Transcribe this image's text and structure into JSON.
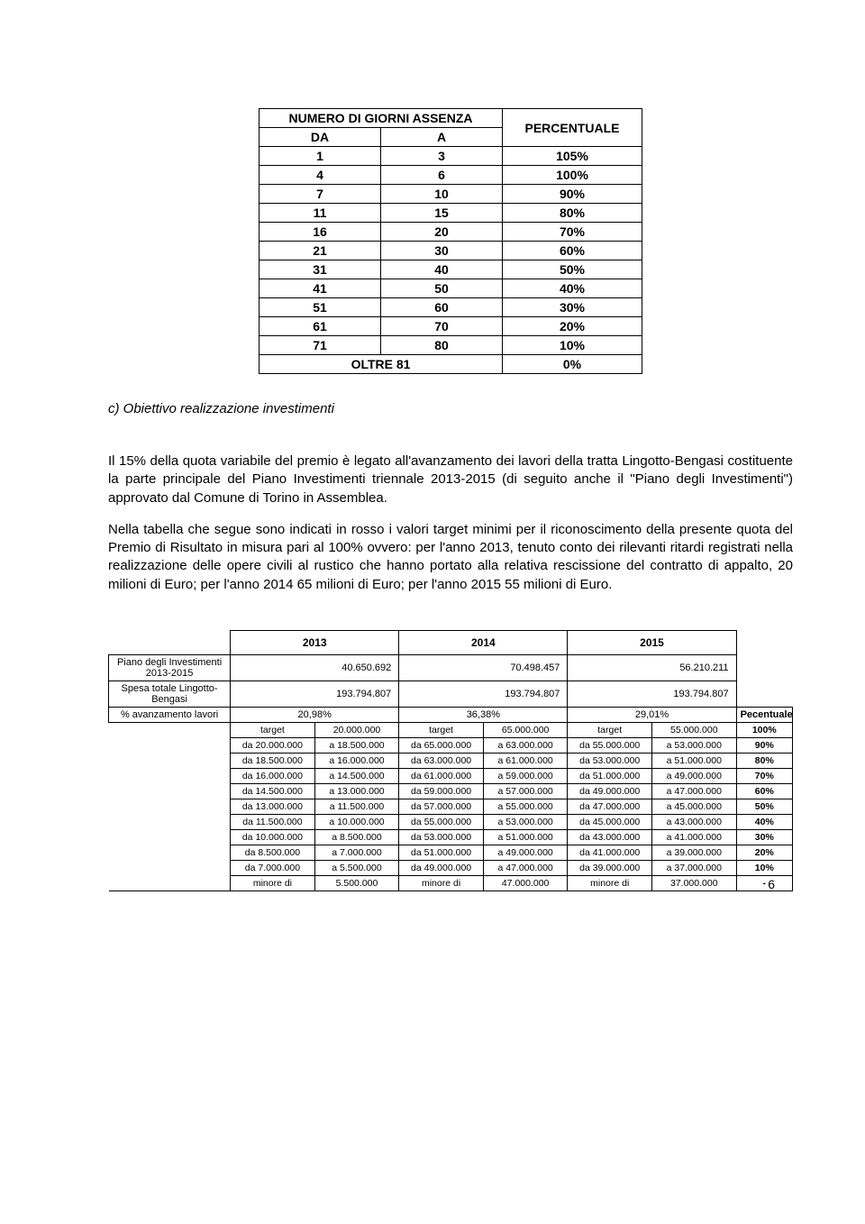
{
  "absence_table": {
    "header_group": "NUMERO DI GIORNI ASSENZA",
    "header_perc": "PERCENTUALE",
    "col_da": "DA",
    "col_a": "A",
    "rows": [
      {
        "da": "1",
        "a": "3",
        "p": "105%"
      },
      {
        "da": "4",
        "a": "6",
        "p": "100%"
      },
      {
        "da": "7",
        "a": "10",
        "p": "90%"
      },
      {
        "da": "11",
        "a": "15",
        "p": "80%"
      },
      {
        "da": "16",
        "a": "20",
        "p": "70%"
      },
      {
        "da": "21",
        "a": "30",
        "p": "60%"
      },
      {
        "da": "31",
        "a": "40",
        "p": "50%"
      },
      {
        "da": "41",
        "a": "50",
        "p": "40%"
      },
      {
        "da": "51",
        "a": "60",
        "p": "30%"
      },
      {
        "da": "61",
        "a": "70",
        "p": "20%"
      },
      {
        "da": "71",
        "a": "80",
        "p": "10%"
      }
    ],
    "last_label": "OLTRE 81",
    "last_perc": "0%"
  },
  "section_label": "c)  Obiettivo realizzazione investimenti",
  "paragraph1": "Il 15% della quota variabile del premio è legato all'avanzamento dei lavori della tratta Lingotto-Bengasi costituente la parte principale del Piano Investimenti triennale 2013-2015 (di seguito anche il \"Piano degli Investimenti\") approvato dal Comune di Torino in Assemblea.",
  "paragraph2": "Nella tabella che segue sono indicati in rosso i valori target minimi per il riconoscimento della presente quota del Premio di Risultato in misura pari al 100% ovvero: per l'anno 2013, tenuto conto dei rilevanti ritardi registrati nella realizzazione delle opere civili al rustico che hanno portato alla relativa rescissione del contratto di appalto, 20 milioni di Euro; per l'anno 2014 65 milioni di Euro; per l'anno 2015 55 milioni di Euro.",
  "invest_table": {
    "year1": "2013",
    "year2": "2014",
    "year3": "2015",
    "perc_header": "Pecentuale",
    "row1_label": "Piano degli Investimenti 2013-2015",
    "row1_v1": "40.650.692",
    "row1_v2": "70.498.457",
    "row1_v3": "56.210.211",
    "row2_label": "Spesa totale Lingotto-Bengasi",
    "row2_v1": "193.794.807",
    "row2_v2": "193.794.807",
    "row2_v3": "193.794.807",
    "row3_label": "% avanzamento lavori",
    "row3_v1": "20,98%",
    "row3_v2": "36,38%",
    "row3_v3": "29,01%",
    "ranges": [
      {
        "y1a": "target",
        "y1b": "20.000.000",
        "y2a": "target",
        "y2b": "65.000.000",
        "y3a": "target",
        "y3b": "55.000.000",
        "p": "100%"
      },
      {
        "y1a": "da 20.000.000",
        "y1b": "a 18.500.000",
        "y2a": "da 65.000.000",
        "y2b": "a 63.000.000",
        "y3a": "da 55.000.000",
        "y3b": "a 53.000.000",
        "p": "90%"
      },
      {
        "y1a": "da 18.500.000",
        "y1b": "a 16.000.000",
        "y2a": "da 63.000.000",
        "y2b": "a 61.000.000",
        "y3a": "da 53.000.000",
        "y3b": "a 51.000.000",
        "p": "80%"
      },
      {
        "y1a": "da 16.000.000",
        "y1b": "a 14.500.000",
        "y2a": "da 61.000.000",
        "y2b": "a 59.000.000",
        "y3a": "da 51.000.000",
        "y3b": "a 49.000.000",
        "p": "70%"
      },
      {
        "y1a": "da 14.500.000",
        "y1b": "a 13.000.000",
        "y2a": "da 59.000.000",
        "y2b": "a 57.000.000",
        "y3a": "da 49.000.000",
        "y3b": "a 47.000.000",
        "p": "60%"
      },
      {
        "y1a": "da 13.000.000",
        "y1b": "a 11.500.000",
        "y2a": "da 57.000.000",
        "y2b": "a 55.000.000",
        "y3a": "da 47.000.000",
        "y3b": "a 45.000.000",
        "p": "50%"
      },
      {
        "y1a": "da 11.500.000",
        "y1b": "a 10.000.000",
        "y2a": "da 55.000.000",
        "y2b": "a 53.000.000",
        "y3a": "da 45.000.000",
        "y3b": "a 43.000.000",
        "p": "40%"
      },
      {
        "y1a": "da 10.000.000",
        "y1b": "a 8.500.000",
        "y2a": "da 53.000.000",
        "y2b": "a 51.000.000",
        "y3a": "da 43.000.000",
        "y3b": "a 41.000.000",
        "p": "30%"
      },
      {
        "y1a": "da 8.500.000",
        "y1b": "a 7.000.000",
        "y2a": "da 51.000.000",
        "y2b": "a 49.000.000",
        "y3a": "da 41.000.000",
        "y3b": "a 39.000.000",
        "p": "20%"
      },
      {
        "y1a": "da 7.000.000",
        "y1b": "a 5.500.000",
        "y2a": "da 49.000.000",
        "y2b": "a 47.000.000",
        "y3a": "da 39.000.000",
        "y3b": "a 37.000.000",
        "p": "10%"
      },
      {
        "y1a": "minore di",
        "y1b": "5.500.000",
        "y2a": "minore di",
        "y2b": "47.000.000",
        "y3a": "minore di",
        "y3b": "37.000.000",
        "p": "-"
      }
    ]
  },
  "page_number": "6"
}
